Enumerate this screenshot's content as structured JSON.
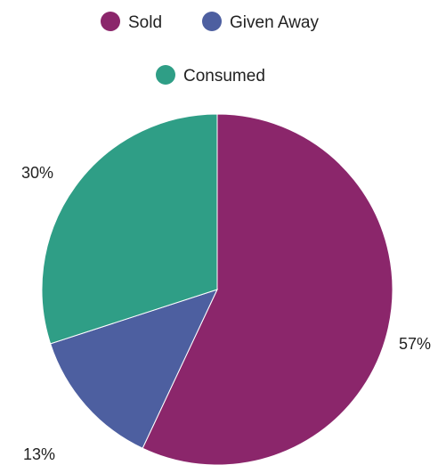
{
  "chart_data": {
    "type": "pie",
    "title": "",
    "legend_position": "top",
    "start_angle_deg": 0,
    "direction": "clockwise",
    "slices": [
      {
        "name": "Sold",
        "value": 57,
        "label": "57%",
        "color": "#8b266b"
      },
      {
        "name": "Given Away",
        "value": 13,
        "label": "13%",
        "color": "#4d5fa0"
      },
      {
        "name": "Consumed",
        "value": 30,
        "label": "30%",
        "color": "#2f9e86"
      }
    ]
  }
}
